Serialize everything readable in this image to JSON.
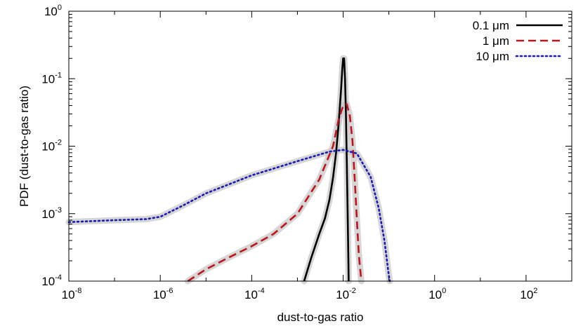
{
  "chart_data": {
    "type": "line",
    "title": "",
    "xlabel": "dust-to-gas ratio",
    "ylabel": "PDF (dust-to-gas ratio)",
    "x_scale": "log",
    "y_scale": "log",
    "xlim": [
      1e-08,
      1000
    ],
    "ylim": [
      0.0001,
      1
    ],
    "x_ticks": [
      {
        "base": "10",
        "exp": "-8",
        "value": 1e-08
      },
      {
        "base": "10",
        "exp": "-6",
        "value": 1e-06
      },
      {
        "base": "10",
        "exp": "-4",
        "value": 0.0001
      },
      {
        "base": "10",
        "exp": "-2",
        "value": 0.01
      },
      {
        "base": "10",
        "exp": "0",
        "value": 1
      },
      {
        "base": "10",
        "exp": "2",
        "value": 100
      }
    ],
    "y_ticks": [
      {
        "base": "10",
        "exp": "-4",
        "value": 0.0001
      },
      {
        "base": "10",
        "exp": "-3",
        "value": 0.001
      },
      {
        "base": "10",
        "exp": "-2",
        "value": 0.01
      },
      {
        "base": "10",
        "exp": "-1",
        "value": 0.1
      },
      {
        "base": "10",
        "exp": "0",
        "value": 1
      }
    ],
    "grid": false,
    "legend_position": "top-right",
    "band_color": "#c8c8c8",
    "series": [
      {
        "name": "0.1 μm",
        "color": "#000000",
        "dash": "solid",
        "points": [
          [
            0.0014,
            0.0001
          ],
          [
            0.002,
            0.00022
          ],
          [
            0.003,
            0.0005
          ],
          [
            0.004,
            0.00085
          ],
          [
            0.005,
            0.0016
          ],
          [
            0.006,
            0.0034
          ],
          [
            0.007,
            0.008
          ],
          [
            0.008,
            0.022
          ],
          [
            0.009,
            0.07
          ],
          [
            0.0095,
            0.13
          ],
          [
            0.01,
            0.2
          ],
          [
            0.0105,
            0.2
          ],
          [
            0.011,
            0.1
          ],
          [
            0.0115,
            0.03
          ],
          [
            0.012,
            0.006
          ],
          [
            0.0125,
            0.0011
          ],
          [
            0.013,
            0.0002
          ],
          [
            0.0132,
            0.0001
          ]
        ]
      },
      {
        "name": "1 μm",
        "color": "#c0141c",
        "dash": "dashed",
        "points": [
          [
            4e-06,
            0.0001
          ],
          [
            1e-05,
            0.00015
          ],
          [
            3e-05,
            0.00022
          ],
          [
            0.0001,
            0.00033
          ],
          [
            0.0003,
            0.0005
          ],
          [
            0.001,
            0.001
          ],
          [
            0.003,
            0.0032
          ],
          [
            0.006,
            0.01
          ],
          [
            0.008,
            0.025
          ],
          [
            0.01,
            0.04
          ],
          [
            0.012,
            0.042
          ],
          [
            0.014,
            0.028
          ],
          [
            0.016,
            0.012
          ],
          [
            0.018,
            0.003
          ],
          [
            0.02,
            0.0008
          ],
          [
            0.022,
            0.00025
          ],
          [
            0.025,
            0.0001
          ]
        ]
      },
      {
        "name": "10 μm",
        "color": "#1a1ab4",
        "dash": "dotted",
        "points": [
          [
            1e-08,
            0.00075
          ],
          [
            1e-07,
            0.0008
          ],
          [
            5e-07,
            0.00083
          ],
          [
            1e-06,
            0.0009
          ],
          [
            3e-06,
            0.0013
          ],
          [
            1e-05,
            0.002
          ],
          [
            0.0001,
            0.0037
          ],
          [
            0.001,
            0.006
          ],
          [
            0.005,
            0.0083
          ],
          [
            0.01,
            0.0088
          ],
          [
            0.02,
            0.0078
          ],
          [
            0.04,
            0.0035
          ],
          [
            0.06,
            0.0012
          ],
          [
            0.08,
            0.0004
          ],
          [
            0.1,
            0.00012
          ],
          [
            0.105,
            0.0001
          ]
        ]
      }
    ]
  }
}
